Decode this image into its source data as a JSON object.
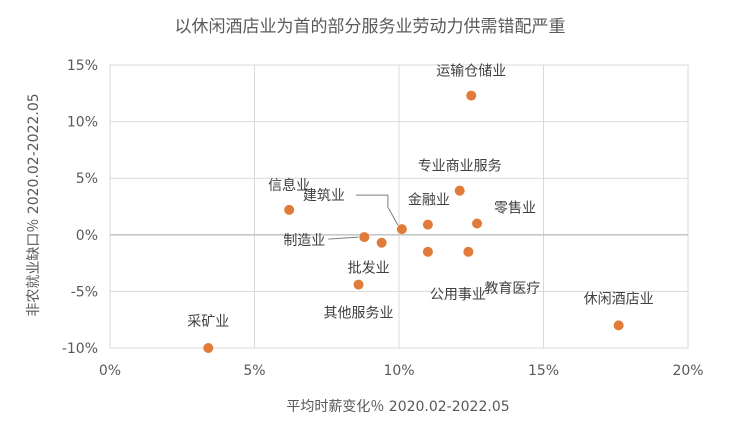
{
  "chart_data": {
    "type": "scatter",
    "title": "以休闲酒店业为首的部分服务业劳动力供需错配严重",
    "xlabel": "平均时薪变化％ 2020.02-2022.05",
    "ylabel": "非农就业缺口％ 2020.02-2022.05",
    "xlim": [
      0,
      20
    ],
    "ylim": [
      -10,
      15
    ],
    "x_ticks": [
      "0%",
      "5%",
      "10%",
      "15%",
      "20%"
    ],
    "y_ticks": [
      "15%",
      "10%",
      "5%",
      "0%",
      "-5%",
      "-10%"
    ],
    "x_tick_values": [
      0,
      5,
      10,
      15,
      20
    ],
    "y_tick_values": [
      15,
      10,
      5,
      0,
      -5,
      -10
    ],
    "grid": true,
    "point_color": "#e07b39",
    "points": [
      {
        "label": "运输仓储业",
        "x": 12.5,
        "y": 12.3
      },
      {
        "label": "专业商业服务",
        "x": 12.1,
        "y": 3.9
      },
      {
        "label": "信息业",
        "x": 6.2,
        "y": 2.2
      },
      {
        "label": "建筑业",
        "x": 10.1,
        "y": 0.5
      },
      {
        "label": "金融业",
        "x": 11.0,
        "y": 0.9
      },
      {
        "label": "零售业",
        "x": 12.7,
        "y": 1.0
      },
      {
        "label": "制造业",
        "x": 8.8,
        "y": -0.2
      },
      {
        "label": "批发业",
        "x": 9.4,
        "y": -0.7
      },
      {
        "label": "公用事业",
        "x": 11.0,
        "y": -1.5
      },
      {
        "label": "教育医疗",
        "x": 12.4,
        "y": -1.5
      },
      {
        "label": "其他服务业",
        "x": 8.6,
        "y": -4.4
      },
      {
        "label": "采矿业",
        "x": 3.4,
        "y": -10.0
      },
      {
        "label": "休闲酒店业",
        "x": 17.6,
        "y": -8.0
      }
    ]
  }
}
